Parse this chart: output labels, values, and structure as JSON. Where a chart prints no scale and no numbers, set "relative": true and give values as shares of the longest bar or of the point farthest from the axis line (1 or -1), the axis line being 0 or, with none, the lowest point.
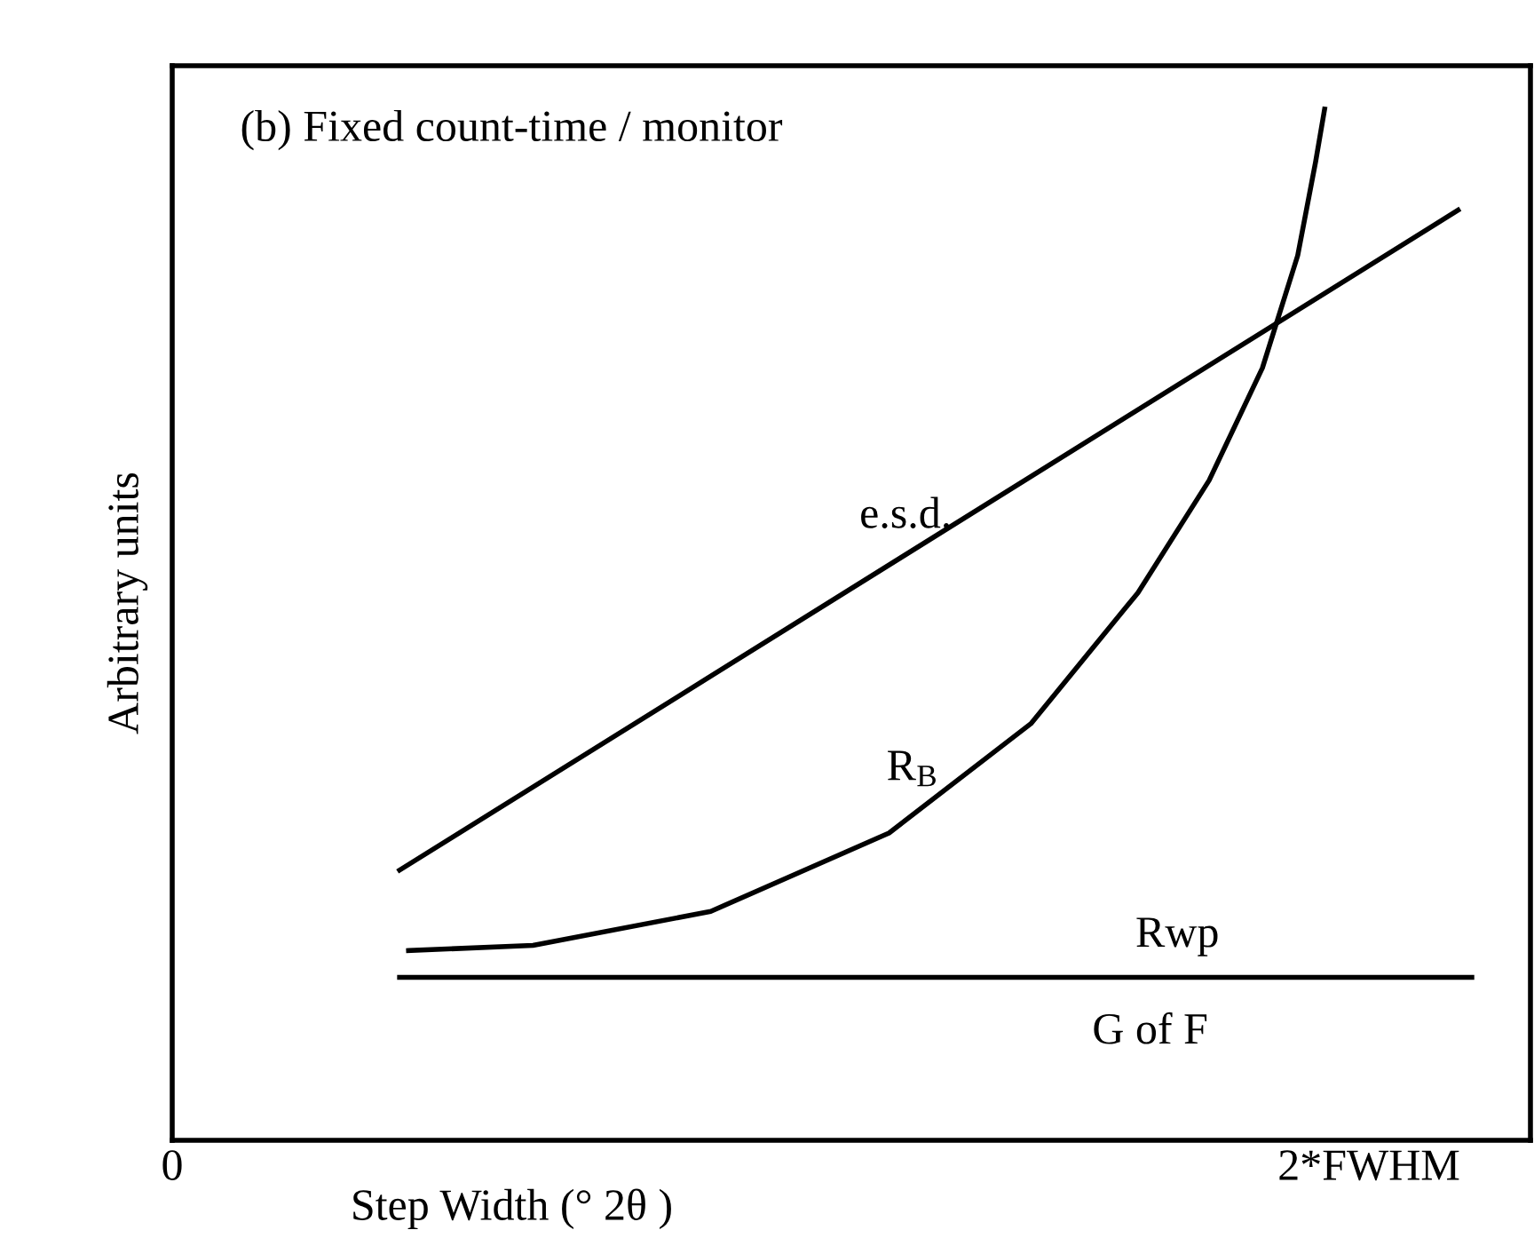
{
  "chart_data": {
    "type": "line",
    "relative": true,
    "title": "(b) Fixed count-time / monitor",
    "xlabel": "Step Width (° 2θ )",
    "ylabel": "Arbitrary units",
    "xlim": [
      0,
      2.27
    ],
    "xticks": [
      0,
      {
        "value": 2,
        "label": "2*FWHM"
      }
    ],
    "tick_labels": "x",
    "grid": false,
    "legend": false,
    "marker": "none",
    "line_style": "solid",
    "series": [
      {
        "name": "e.s.d.",
        "color": "#000000",
        "x": [
          0.38,
          2.149
        ],
        "values": [
          0.262,
          0.902
        ]
      },
      {
        "name": "R$_{B}$",
        "color": "#000000",
        "x": [
          0.395,
          0.603,
          0.9,
          1.198,
          1.435,
          1.614,
          1.733,
          1.822,
          1.881,
          1.911,
          1.926
        ],
        "values": [
          0.184,
          0.189,
          0.222,
          0.298,
          0.404,
          0.531,
          0.64,
          0.749,
          0.858,
          0.949,
          1.0
        ]
      },
      {
        "name": "Rwp",
        "color": "#000000",
        "x": [
          0.38,
          2.172
        ],
        "values": [
          0.158,
          0.158
        ]
      }
    ],
    "annotations": [
      "G of F"
    ]
  }
}
